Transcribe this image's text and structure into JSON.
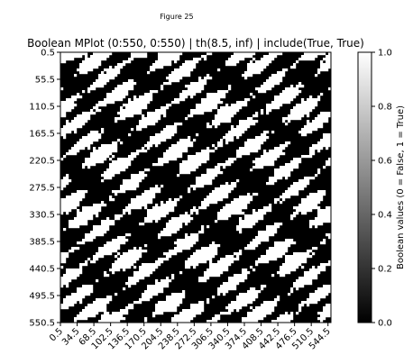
{
  "figure_label": "Figure 25",
  "chart_data": {
    "type": "heatmap",
    "title": "Boolean MPlot (0:550, 0:550) | th(8.5, inf) | include(True, True)",
    "xlabel": "",
    "ylabel": "",
    "x_range": [
      0.5,
      550.5
    ],
    "y_range": [
      0.5,
      550.5
    ],
    "x_ticks": [
      "0.5",
      "34.5",
      "68.5",
      "102.5",
      "136.5",
      "170.5",
      "204.5",
      "238.5",
      "272.5",
      "306.5",
      "340.5",
      "374.5",
      "408.5",
      "442.5",
      "476.5",
      "510.5",
      "544.5"
    ],
    "y_ticks": [
      "0.5",
      "55.5",
      "110.5",
      "165.5",
      "220.5",
      "275.5",
      "330.5",
      "385.5",
      "440.5",
      "495.5",
      "550.5"
    ],
    "x_tick_values": [
      0.5,
      34.5,
      68.5,
      102.5,
      136.5,
      170.5,
      204.5,
      238.5,
      272.5,
      306.5,
      340.5,
      374.5,
      408.5,
      442.5,
      476.5,
      510.5,
      544.5
    ],
    "y_tick_values": [
      0.5,
      55.5,
      110.5,
      165.5,
      220.5,
      275.5,
      330.5,
      385.5,
      440.5,
      495.5,
      550.5
    ],
    "colorbar": {
      "label": "Boolean values (0 = False, 1 = True)",
      "range": [
        0.0,
        1.0
      ],
      "ticks": [
        "0.0",
        "0.2",
        "0.4",
        "0.6",
        "0.8",
        "1.0"
      ],
      "tick_values": [
        0.0,
        0.2,
        0.4,
        0.6,
        0.8,
        1.0
      ],
      "colormap": "gray",
      "low_color": "#000000",
      "high_color": "#ffffff"
    },
    "grid": false
  }
}
